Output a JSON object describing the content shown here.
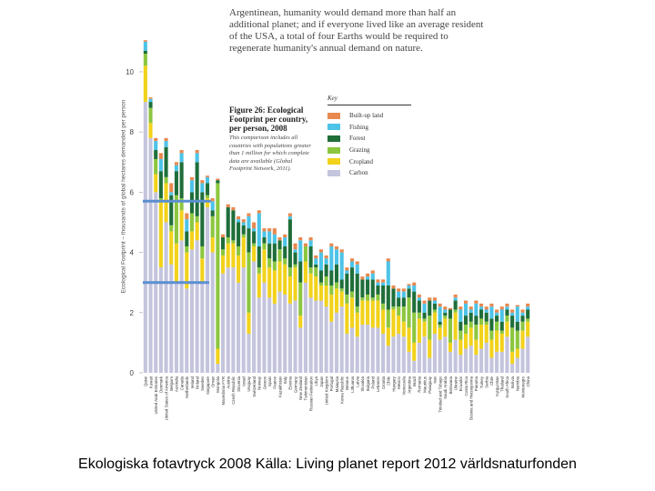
{
  "caption": "Ekologiska fotavtryck 2008 Källa: Living planet report 2012 världsnaturfonden",
  "intro_text": "Argentinean, humanity would demand more than half an additional planet; and if everyone lived like an average resident of the USA, a total of four Earths would be required to regenerate humanity's annual demand on nature.",
  "figure_title": "Figure 26: Ecological Footprint per country, per person, 2008",
  "figure_description": "This comparison includes all countries with populations greater than 1 million for which complete data are available (Global Footprint Network, 2011).",
  "key": {
    "title": "Key",
    "items": [
      {
        "label": "Built-up land",
        "color": "#e8894f"
      },
      {
        "label": "Fishing",
        "color": "#4dc3e8"
      },
      {
        "label": "Forest",
        "color": "#1f6e3a"
      },
      {
        "label": "Grazing",
        "color": "#8cc63f"
      },
      {
        "label": "Cropland",
        "color": "#f2d21b"
      },
      {
        "label": "Carbon",
        "color": "#c4c4dd"
      }
    ]
  },
  "chart_data": {
    "type": "bar",
    "stacked": true,
    "title": "Figure 26: Ecological Footprint per country, per person, 2008",
    "ylabel": "Ecological Footprint – thousands of global hectares demanded per person",
    "ylim": [
      0,
      11.6
    ],
    "yticks": [
      0,
      2,
      4,
      6,
      8,
      10
    ],
    "reference_lines": [
      5.7,
      3.0
    ],
    "categories": [
      "Qatar",
      "Kuwait",
      "United Arab Emirates",
      "Denmark",
      "United States of America",
      "Belgium",
      "Australia",
      "Canada",
      "Netherlands",
      "Ireland",
      "Finland",
      "Sweden",
      "Singapore",
      "Oman",
      "Mongolia",
      "Macedonia FYR",
      "Austria",
      "Czech Republic",
      "Slovenia",
      "Israel",
      "Uruguay",
      "Switzerland",
      "Norway",
      "Greece",
      "Spain",
      "France",
      "Kazakhstan",
      "Italy",
      "Estonia",
      "Germany",
      "New Zealand",
      "Turkmenistan",
      "Russian Federation",
      "Libya",
      "Japan",
      "United Kingdom",
      "Portugal",
      "Malaysia",
      "Korea Republic",
      "Belarus",
      "Lithuania",
      "Latvia",
      "Slovakia",
      "Bulgaria",
      "Poland",
      "Lebanon",
      "Croatia",
      "Chile",
      "Hungary",
      "Mexico",
      "Venezuela",
      "Argentina",
      "Brazil",
      "Romania",
      "Mauritius",
      "Paraguay",
      "Iran",
      "Trinidad and Tobago",
      "Saudi Arabia",
      "Botswana",
      "Ukraine",
      "Ecuador",
      "Costa Rica",
      "Bosnia and Herzegovina",
      "Panama",
      "Turkey",
      "Serbia",
      "Chile",
      "Kyrgyzstan",
      "Thailand",
      "South Africa",
      "Bolivia",
      "Namibia",
      "Montenegro",
      "China"
    ],
    "series": [
      {
        "name": "Carbon",
        "color": "#c4c4dd",
        "values": [
          9.0,
          7.8,
          6.0,
          3.5,
          5.0,
          3.6,
          3.0,
          4.4,
          2.8,
          4.1,
          4.4,
          3.0,
          5.5,
          4.0,
          0.3,
          3.3,
          3.5,
          3.5,
          3.0,
          3.5,
          1.3,
          3.7,
          2.5,
          3.0,
          2.5,
          2.3,
          2.7,
          2.6,
          2.3,
          2.4,
          1.5,
          3.0,
          2.5,
          2.4,
          2.4,
          2.2,
          1.7,
          2.0,
          2.2,
          1.3,
          1.5,
          1.2,
          1.6,
          1.6,
          1.5,
          1.5,
          1.3,
          0.9,
          1.2,
          1.3,
          1.2,
          0.7,
          0.4,
          1.0,
          1.2,
          0.5,
          1.3,
          1.1,
          1.2,
          0.7,
          1.1,
          0.6,
          0.8,
          0.9,
          0.6,
          0.8,
          1.0,
          0.5,
          0.7,
          0.7,
          1.2,
          0.3,
          0.5,
          0.8,
          1.2
        ]
      },
      {
        "name": "Cropland",
        "color": "#f2d21b",
        "values": [
          1.2,
          0.5,
          0.6,
          2.2,
          1.3,
          1.1,
          1.3,
          1.0,
          1.2,
          0.6,
          0.6,
          0.8,
          0.3,
          0.5,
          0.5,
          0.6,
          0.8,
          0.8,
          0.9,
          1.0,
          0.7,
          0.5,
          0.8,
          1.1,
          1.0,
          1.1,
          1.0,
          1.0,
          0.9,
          1.1,
          0.4,
          0.7,
          0.8,
          0.8,
          0.5,
          0.7,
          0.9,
          0.8,
          0.5,
          1.0,
          1.0,
          0.8,
          0.8,
          0.8,
          0.9,
          0.9,
          0.8,
          0.6,
          0.9,
          0.6,
          0.5,
          0.8,
          0.6,
          0.8,
          0.5,
          0.6,
          0.7,
          0.4,
          0.6,
          0.3,
          0.9,
          0.5,
          0.5,
          0.6,
          0.5,
          0.8,
          0.6,
          0.6,
          0.7,
          0.6,
          0.5,
          0.4,
          0.3,
          0.6,
          0.5
        ]
      },
      {
        "name": "Grazing",
        "color": "#8cc63f",
        "values": [
          0.4,
          0.5,
          0.5,
          0.1,
          0.2,
          0.2,
          1.6,
          0.4,
          0.2,
          0.6,
          0.2,
          0.4,
          0.1,
          0.7,
          5.5,
          0.2,
          0.2,
          0.1,
          0.3,
          0.1,
          2.0,
          0.1,
          0.2,
          0.2,
          0.3,
          0.3,
          0.4,
          0.2,
          0.3,
          0.1,
          1.1,
          0.5,
          0.2,
          0.3,
          0.1,
          0.3,
          0.3,
          0.2,
          0.1,
          0.3,
          0.2,
          0.2,
          0.1,
          0.2,
          0.1,
          0.2,
          0.2,
          0.6,
          0.1,
          0.3,
          0.5,
          1.0,
          1.0,
          0.2,
          0.1,
          0.8,
          0.1,
          0.1,
          0.1,
          0.8,
          0.1,
          0.3,
          0.3,
          0.2,
          0.5,
          0.2,
          0.1,
          0.3,
          0.3,
          0.1,
          0.2,
          0.8,
          0.6,
          0.3,
          0.1
        ]
      },
      {
        "name": "Forest",
        "color": "#1f6e3a",
        "values": [
          0.1,
          0.2,
          0.3,
          0.9,
          1.0,
          1.0,
          0.8,
          1.2,
          0.5,
          0.7,
          1.8,
          1.8,
          0.4,
          0.2,
          0.1,
          0.4,
          1.0,
          1.0,
          0.8,
          0.3,
          0.8,
          0.4,
          0.7,
          0.2,
          0.5,
          0.6,
          0.3,
          0.4,
          1.6,
          0.4,
          0.7,
          0.0,
          0.7,
          0.1,
          0.4,
          0.4,
          0.5,
          0.6,
          0.3,
          0.7,
          0.8,
          1.1,
          0.6,
          0.5,
          0.6,
          0.3,
          0.6,
          0.8,
          0.6,
          0.3,
          0.3,
          0.3,
          0.7,
          0.4,
          0.2,
          0.5,
          0.2,
          0.1,
          0.1,
          0.3,
          0.3,
          0.3,
          0.3,
          0.3,
          0.3,
          0.3,
          0.3,
          0.4,
          0.2,
          0.3,
          0.2,
          0.4,
          0.3,
          0.2,
          0.3
        ]
      },
      {
        "name": "Fishing",
        "color": "#4dc3e8",
        "values": [
          0.3,
          0.1,
          0.3,
          0.4,
          0.2,
          0.1,
          0.2,
          0.3,
          0.4,
          0.4,
          0.3,
          0.3,
          0.2,
          0.3,
          0.0,
          0.0,
          0.0,
          0.0,
          0.1,
          0.1,
          0.4,
          0.1,
          1.1,
          0.2,
          0.4,
          0.3,
          0.0,
          0.3,
          0.1,
          0.1,
          0.7,
          0.0,
          0.2,
          0.2,
          0.6,
          0.2,
          0.8,
          0.5,
          0.9,
          0.1,
          0.2,
          0.3,
          0.0,
          0.1,
          0.2,
          0.1,
          0.1,
          0.8,
          0.0,
          0.2,
          0.2,
          0.1,
          0.2,
          0.1,
          0.3,
          0.0,
          0.1,
          0.5,
          0.1,
          0.0,
          0.1,
          0.4,
          0.4,
          0.1,
          0.4,
          0.1,
          0.1,
          0.4,
          0.1,
          0.4,
          0.1,
          0.1,
          0.5,
          0.1,
          0.1
        ]
      },
      {
        "name": "Built-up land",
        "color": "#e8894f",
        "values": [
          0.05,
          0.05,
          0.1,
          0.2,
          0.1,
          0.3,
          0.1,
          0.1,
          0.2,
          0.1,
          0.1,
          0.1,
          0.05,
          0.1,
          0.05,
          0.1,
          0.1,
          0.1,
          0.1,
          0.1,
          0.1,
          0.2,
          0.1,
          0.1,
          0.1,
          0.2,
          0.1,
          0.1,
          0.1,
          0.2,
          0.1,
          0.1,
          0.1,
          0.1,
          0.1,
          0.1,
          0.1,
          0.1,
          0.1,
          0.1,
          0.1,
          0.1,
          0.1,
          0.1,
          0.1,
          0.1,
          0.1,
          0.1,
          0.1,
          0.1,
          0.1,
          0.05,
          0.1,
          0.1,
          0.1,
          0.1,
          0.1,
          0.1,
          0.1,
          0.05,
          0.1,
          0.1,
          0.1,
          0.1,
          0.1,
          0.1,
          0.1,
          0.1,
          0.1,
          0.1,
          0.1,
          0.1,
          0.05,
          0.1,
          0.1
        ]
      }
    ]
  }
}
